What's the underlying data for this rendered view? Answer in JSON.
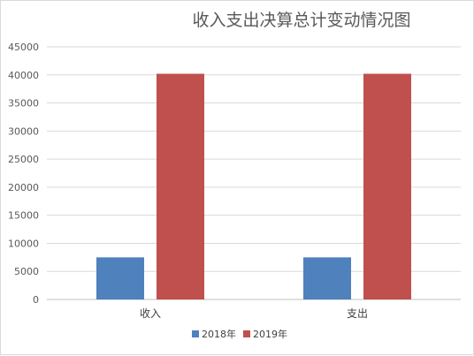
{
  "chart_data": {
    "type": "bar",
    "title": "收入支出决算总计变动情况图",
    "categories": [
      "收入",
      "支出"
    ],
    "series": [
      {
        "name": "2018年",
        "color": "#4f81bd",
        "values": [
          7500,
          7500
        ]
      },
      {
        "name": "2019年",
        "color": "#c0504d",
        "values": [
          40200,
          40200
        ]
      }
    ],
    "ylim": [
      0,
      45000
    ],
    "yticks": [
      0,
      5000,
      10000,
      15000,
      20000,
      25000,
      30000,
      35000,
      40000,
      45000
    ],
    "grid": true,
    "legend_position": "bottom"
  }
}
